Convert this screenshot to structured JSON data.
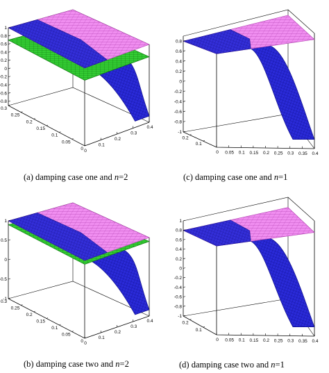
{
  "figure": {
    "captions": [
      {
        "prefix": "(a) damping case one and ",
        "var": "n",
        "suffix": "=2"
      },
      {
        "prefix": "(c) damping case one and ",
        "var": "n",
        "suffix": "=1"
      },
      {
        "prefix": "(b) damping case two and ",
        "var": "n",
        "suffix": "=2"
      },
      {
        "prefix": "(d) damping case two and ",
        "var": "n",
        "suffix": "=1"
      }
    ]
  },
  "colors": {
    "magenta_surface": "#f08ef0",
    "magenta_grid": "#b040b0",
    "green_surface": "#33cc33",
    "green_grid": "#0a6e0a",
    "blue_surface": "#2a2ad8",
    "blue_dark": "#0a0a80",
    "axis": "#000000"
  },
  "chart_data": [
    {
      "id": "a",
      "type": "surface3d",
      "series": [
        {
          "name": "",
          "kind": "magenta plane",
          "z": 1
        },
        {
          "name": "",
          "kind": "green plane",
          "z": 0.7
        },
        {
          "name": "",
          "kind": "blue surface"
        }
      ],
      "z_ticks": [
        "1",
        "0.8",
        "0.6",
        "0.4",
        "0.2",
        "0",
        "-0.2",
        "-0.4",
        "-0.6",
        "-0.8"
      ],
      "y_ticks": [
        "0.3",
        "0.25",
        "0.2",
        "0.15",
        "0.1",
        "0.05",
        "0"
      ],
      "x_ticks": [
        "0",
        "0.1",
        "0.2",
        "0.3",
        "0.4"
      ],
      "zlim": [
        -0.9,
        1
      ],
      "ylim": [
        0,
        0.3
      ],
      "xlim": [
        0,
        0.4
      ]
    },
    {
      "id": "c",
      "type": "surface3d",
      "series": [
        {
          "name": "",
          "kind": "magenta plane",
          "z": 0.8
        },
        {
          "name": "",
          "kind": "blue surface"
        }
      ],
      "z_ticks": [
        "0.8",
        "0.6",
        "0.4",
        "0.2",
        "0",
        "-0.2",
        "-0.4",
        "-0.6",
        "-0.8",
        "-1"
      ],
      "y_ticks": [
        "0.2",
        "0.1"
      ],
      "x_ticks": [
        "0",
        "0.05",
        "0.1",
        "0.15",
        "0.2",
        "0.25",
        "0.3",
        "0.35",
        "0.4"
      ],
      "zlim": [
        -1,
        0.9
      ],
      "ylim": [
        0,
        0.25
      ],
      "xlim": [
        0,
        0.4
      ]
    },
    {
      "id": "b",
      "type": "surface3d",
      "series": [
        {
          "name": "",
          "kind": "magenta plane",
          "z": 1
        },
        {
          "name": "",
          "kind": "green plane",
          "z": 0.9
        },
        {
          "name": "",
          "kind": "blue surface"
        }
      ],
      "z_ticks": [
        "1",
        "0.5",
        "0",
        "-0.5",
        "-1"
      ],
      "y_ticks": [
        "0.3",
        "0.25",
        "0.2",
        "0.15",
        "0.1",
        "0.05",
        "0"
      ],
      "x_ticks": [
        "0",
        "0.1",
        "0.2",
        "0.3",
        "0.4"
      ],
      "zlim": [
        -1,
        1
      ],
      "ylim": [
        0,
        0.3
      ],
      "xlim": [
        0,
        0.4
      ]
    },
    {
      "id": "d",
      "type": "surface3d",
      "series": [
        {
          "name": "",
          "kind": "magenta plane",
          "z": 0.8
        },
        {
          "name": "",
          "kind": "blue surface"
        }
      ],
      "z_ticks": [
        "1",
        "0.8",
        "0.6",
        "0.4",
        "0.2",
        "0",
        "-0.2",
        "-0.4",
        "-0.6",
        "-0.8",
        "-1"
      ],
      "y_ticks": [
        "0.2",
        "0.1"
      ],
      "x_ticks": [
        "0",
        "0.05",
        "0.1",
        "0.15",
        "0.2",
        "0.25",
        "0.3",
        "0.35",
        "0.4"
      ],
      "zlim": [
        -1,
        1
      ],
      "ylim": [
        0,
        0.25
      ],
      "xlim": [
        0,
        0.4
      ]
    }
  ]
}
